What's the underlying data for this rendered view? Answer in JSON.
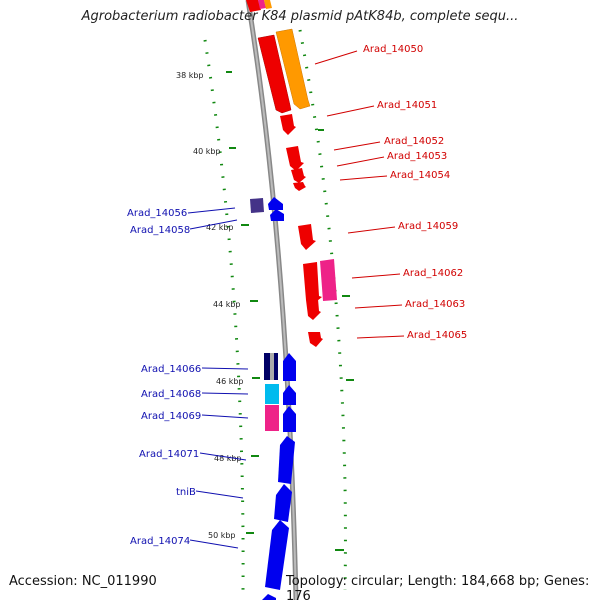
{
  "title": "Agrobacterium radiobacter K84 plasmid pAtK84b, complete sequ...",
  "footer": {
    "accession": "Accession: NC_011990",
    "summary": "Topology: circular; Length: 184,668 bp; Genes: 176"
  },
  "colors": {
    "red": "#ee0000",
    "orange": "#ff9900",
    "pink": "#ee2288",
    "blue": "#0000ee",
    "navy": "#000066",
    "cyan": "#00bbee",
    "purple": "#443388",
    "tick": "#118811"
  },
  "ticks": [
    {
      "label": "38 kbp"
    },
    {
      "label": "40 kbp"
    },
    {
      "label": "42 kbp"
    },
    {
      "label": "44 kbp"
    },
    {
      "label": "46 kbp"
    },
    {
      "label": "48 kbp"
    },
    {
      "label": "50 kbp"
    }
  ],
  "gene_labels": [
    {
      "text": "Arad_14050",
      "strand": "plus"
    },
    {
      "text": "Arad_14051",
      "strand": "plus"
    },
    {
      "text": "Arad_14052",
      "strand": "plus"
    },
    {
      "text": "Arad_14053",
      "strand": "plus"
    },
    {
      "text": "Arad_14054",
      "strand": "plus"
    },
    {
      "text": "Arad_14056",
      "strand": "minus"
    },
    {
      "text": "Arad_14058",
      "strand": "minus"
    },
    {
      "text": "Arad_14059",
      "strand": "plus"
    },
    {
      "text": "Arad_14062",
      "strand": "plus"
    },
    {
      "text": "Arad_14063",
      "strand": "plus"
    },
    {
      "text": "Arad_14065",
      "strand": "plus"
    },
    {
      "text": "Arad_14066",
      "strand": "minus"
    },
    {
      "text": "Arad_14068",
      "strand": "minus"
    },
    {
      "text": "Arad_14069",
      "strand": "minus"
    },
    {
      "text": "Arad_14071",
      "strand": "minus"
    },
    {
      "text": "tniB",
      "strand": "minus"
    },
    {
      "text": "Arad_14074",
      "strand": "minus"
    }
  ]
}
